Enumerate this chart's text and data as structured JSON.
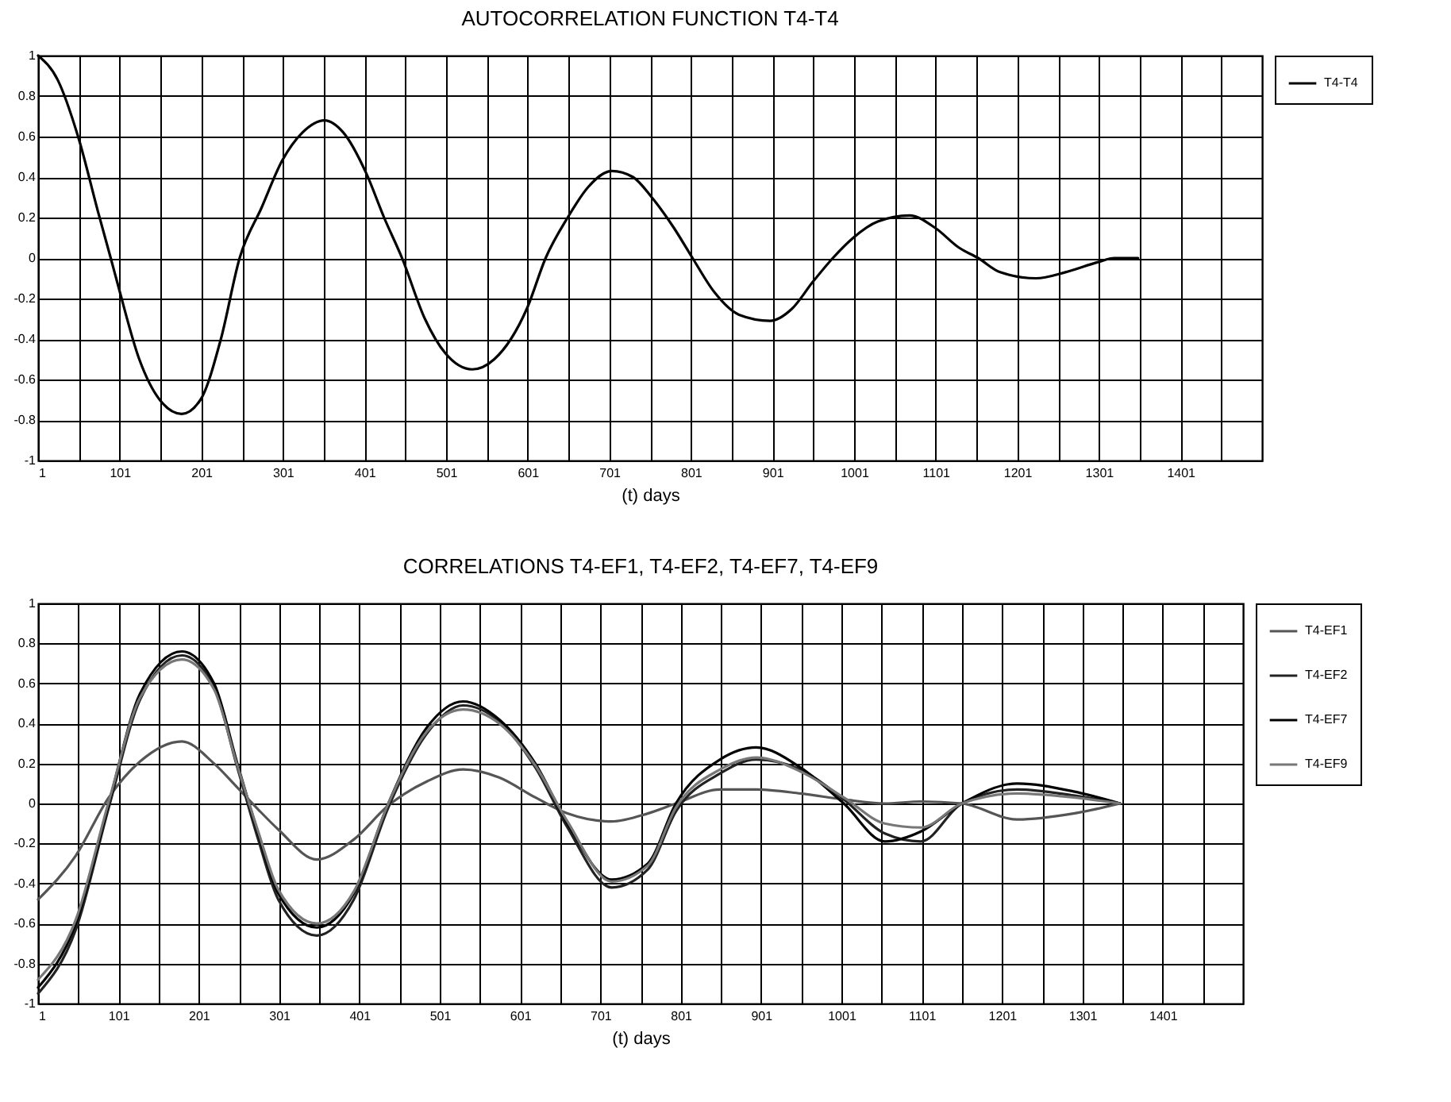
{
  "chart_data": [
    {
      "type": "line",
      "title": "AUTOCORRELATION FUNCTION  T4-T4",
      "xlabel": "(t) days",
      "xlim": [
        1,
        1501
      ],
      "xticks": [
        1,
        {
          "value": 51,
          "label": null
        },
        101,
        {
          "value": 151,
          "label": null
        },
        201,
        {
          "value": 251,
          "label": null
        },
        301,
        {
          "value": 351,
          "label": null
        },
        401,
        {
          "value": 451,
          "label": null
        },
        501,
        {
          "value": 551,
          "label": null
        },
        601,
        {
          "value": 651,
          "label": null
        },
        701,
        {
          "value": 751,
          "label": null
        },
        801,
        {
          "value": 851,
          "label": null
        },
        901,
        {
          "value": 951,
          "label": null
        },
        1001,
        {
          "value": 1051,
          "label": null
        },
        1101,
        {
          "value": 1151,
          "label": null
        },
        1201,
        {
          "value": 1251,
          "label": null
        },
        1301,
        {
          "value": 1351,
          "label": null
        },
        1401,
        {
          "value": 1451,
          "label": null
        }
      ],
      "ylim": [
        -1,
        1
      ],
      "yticks": [
        -1,
        -0.8,
        -0.6,
        -0.4,
        -0.2,
        0,
        0.2,
        0.4,
        0.6,
        0.8,
        1
      ],
      "grid": true,
      "legend": "right",
      "marker": "none",
      "line_style": "solid",
      "x": [
        1,
        25,
        50,
        75,
        90,
        100,
        125,
        150,
        177,
        200,
        225,
        248,
        275,
        300,
        325,
        352,
        375,
        403,
        425,
        447,
        475,
        500,
        533,
        560,
        600,
        623,
        650,
        675,
        704,
        730,
        753,
        780,
        803,
        830,
        860,
        898,
        925,
        950,
        975,
        1000,
        1030,
        1069,
        1100,
        1130,
        1153,
        1180,
        1224,
        1260,
        1300,
        1320,
        1349
      ],
      "series": [
        {
          "name": "T4-T4",
          "color": "#000000",
          "values": [
            1,
            0.88,
            0.6,
            0.22,
            0,
            -0.15,
            -0.5,
            -0.7,
            -0.77,
            -0.7,
            -0.4,
            0,
            0.25,
            0.48,
            0.62,
            0.68,
            0.62,
            0.42,
            0.2,
            0,
            -0.3,
            -0.47,
            -0.55,
            -0.5,
            -0.25,
            0,
            0.2,
            0.35,
            0.43,
            0.4,
            0.3,
            0.15,
            0,
            -0.17,
            -0.28,
            -0.31,
            -0.25,
            -0.12,
            0,
            0.1,
            0.18,
            0.21,
            0.15,
            0.05,
            0,
            -0.07,
            -0.1,
            -0.07,
            -0.02,
            0,
            0
          ]
        }
      ]
    },
    {
      "type": "line",
      "title": "CORRELATIONS  T4-EF1, T4-EF2, T4-EF7, T4-EF9",
      "xlabel": "(t) days",
      "xlim": [
        1,
        1501
      ],
      "xticks": [
        1,
        {
          "value": 51,
          "label": null
        },
        101,
        {
          "value": 151,
          "label": null
        },
        201,
        {
          "value": 251,
          "label": null
        },
        301,
        {
          "value": 351,
          "label": null
        },
        401,
        {
          "value": 451,
          "label": null
        },
        501,
        {
          "value": 551,
          "label": null
        },
        601,
        {
          "value": 651,
          "label": null
        },
        701,
        {
          "value": 751,
          "label": null
        },
        801,
        {
          "value": 851,
          "label": null
        },
        901,
        {
          "value": 951,
          "label": null
        },
        1001,
        {
          "value": 1051,
          "label": null
        },
        1101,
        {
          "value": 1151,
          "label": null
        },
        1201,
        {
          "value": 1251,
          "label": null
        },
        1301,
        {
          "value": 1351,
          "label": null
        },
        1401,
        {
          "value": 1451,
          "label": null
        }
      ],
      "ylim": [
        -1,
        1
      ],
      "yticks": [
        -1,
        -0.8,
        -0.6,
        -0.4,
        -0.2,
        0,
        0.2,
        0.4,
        0.6,
        0.8,
        1
      ],
      "grid": true,
      "legend": "right",
      "marker": "none",
      "line_style": "solid",
      "x": [
        1,
        48,
        89,
        128,
        180,
        220,
        249,
        275,
        300,
        348,
        394,
        437,
        485,
        530,
        575,
        620,
        660,
        715,
        760,
        795,
        850,
        895,
        950,
        1004,
        1055,
        1100,
        1151,
        1220,
        1290,
        1348
      ],
      "series": [
        {
          "name": "T4-EF1",
          "color": "#555555",
          "values": [
            -0.48,
            -0.26,
            0.03,
            0.21,
            0.31,
            0.2,
            0.08,
            -0.03,
            -0.13,
            -0.28,
            -0.18,
            -0.01,
            0.11,
            0.17,
            0.13,
            0.03,
            -0.05,
            -0.09,
            -0.05,
            0,
            0.07,
            0.07,
            0.05,
            0.02,
            0,
            0.01,
            0,
            -0.08,
            -0.05,
            0
          ]
        },
        {
          "name": "T4-EF2",
          "color": "#222222",
          "values": [
            -0.95,
            -0.63,
            -0.02,
            0.52,
            0.74,
            0.58,
            0.18,
            -0.18,
            -0.48,
            -0.66,
            -0.48,
            -0.02,
            0.35,
            0.49,
            0.41,
            0.18,
            -0.12,
            -0.42,
            -0.33,
            -0.04,
            0.15,
            0.22,
            0.17,
            0.02,
            -0.15,
            -0.19,
            0,
            0.07,
            0.04,
            0
          ]
        },
        {
          "name": "T4-EF7",
          "color": "#000000",
          "values": [
            -0.92,
            -0.6,
            0,
            0.55,
            0.76,
            0.6,
            0.2,
            -0.15,
            -0.45,
            -0.62,
            -0.45,
            0,
            0.38,
            0.51,
            0.42,
            0.2,
            -0.1,
            -0.38,
            -0.3,
            0,
            0.22,
            0.28,
            0.18,
            0,
            -0.19,
            -0.14,
            0,
            0.1,
            0.06,
            0
          ]
        },
        {
          "name": "T4-EF9",
          "color": "#777777",
          "values": [
            -0.88,
            -0.58,
            0.01,
            0.53,
            0.72,
            0.57,
            0.19,
            -0.14,
            -0.43,
            -0.6,
            -0.44,
            0,
            0.36,
            0.47,
            0.4,
            0.19,
            -0.09,
            -0.39,
            -0.31,
            -0.02,
            0.17,
            0.23,
            0.16,
            0.03,
            -0.1,
            -0.12,
            0,
            0.05,
            0.03,
            0
          ]
        }
      ]
    }
  ]
}
